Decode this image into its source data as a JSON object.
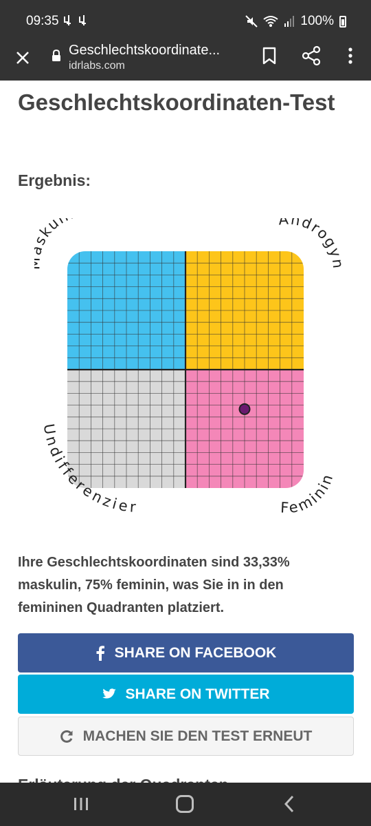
{
  "status": {
    "time": "09:35",
    "left_icons": "⏛ ⏛",
    "battery": "100%"
  },
  "browser": {
    "title": "Geschlechtskoordinate...",
    "domain": "idrlabs.com"
  },
  "page": {
    "heading": "Geschlechtskoordinaten-Test",
    "result_label": "Ergebnis:",
    "result_text": "Ihre Geschlechtskoordinaten sind 33,33% maskulin, 75% feminin, was Sie in in den femininen Quadranten platziert.",
    "next_heading": "Erläuterung der Quadranten"
  },
  "chart_data": {
    "type": "scatter",
    "quadrant_labels": {
      "top_left": "Maskulin",
      "top_right": "Androgyn",
      "bottom_left": "Undifferenziert",
      "bottom_right": "Feminin"
    },
    "quadrant_colors": {
      "top_left": "#45c1ef",
      "top_right": "#fdc51a",
      "bottom_left": "#d9d9d9",
      "bottom_right": "#f487b8"
    },
    "grid": true,
    "point": {
      "feminin": 75,
      "maskulin": 33.33
    },
    "point_color": "#6a1a6f"
  },
  "buttons": {
    "facebook": "SHARE ON FACEBOOK",
    "twitter": "SHARE ON TWITTER",
    "retry": "MACHEN SIE DEN TEST ERNEUT"
  },
  "icons": {
    "close": "close-icon",
    "lock": "lock-icon",
    "bookmark": "bookmark-icon",
    "share": "share-icon",
    "menu": "more-vert-icon",
    "facebook": "facebook-icon",
    "twitter": "twitter-icon",
    "retry": "refresh-icon"
  }
}
